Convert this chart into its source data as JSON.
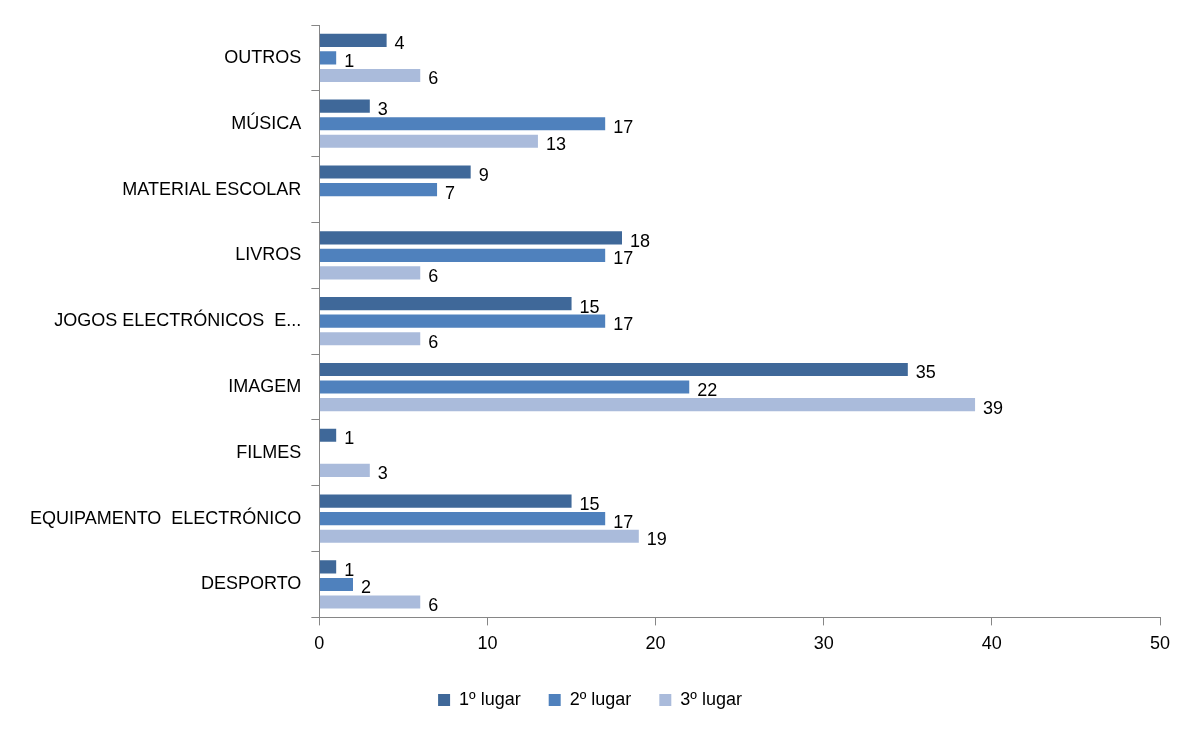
{
  "chart_data": {
    "type": "bar",
    "orientation": "horizontal",
    "categories": [
      "OUTROS",
      "MÚSICA",
      "MATERIAL ESCOLAR",
      "LIVROS",
      "JOGOS ELECTRÓNICOS  E...",
      "IMAGEM",
      "FILMES",
      "EQUIPAMENTO  ELECTRÓNICO",
      "DESPORTO"
    ],
    "series": [
      {
        "name": "1º lugar",
        "color": "#3f6899",
        "values": [
          4,
          3,
          9,
          18,
          15,
          35,
          1,
          15,
          1
        ]
      },
      {
        "name": "2º lugar",
        "color": "#4f81bd",
        "values": [
          1,
          17,
          7,
          17,
          17,
          22,
          null,
          17,
          2
        ]
      },
      {
        "name": "3º lugar",
        "color": "#aabbdb",
        "values": [
          6,
          13,
          null,
          6,
          6,
          39,
          3,
          19,
          6
        ]
      }
    ],
    "xlim": [
      0,
      50
    ],
    "xticks": [
      0,
      10,
      20,
      30,
      40,
      50
    ],
    "grid": false,
    "legend": "bottom",
    "data_labels": true
  }
}
